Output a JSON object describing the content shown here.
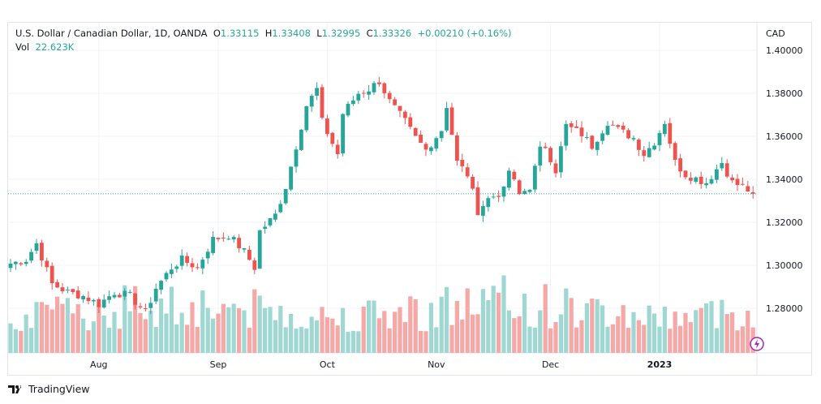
{
  "legend": {
    "symbol": "U.S. Dollar / Canadian Dollar, 1D, OANDA",
    "o_label": "O",
    "o": "1.33115",
    "h_label": "H",
    "h": "1.33408",
    "l_label": "L",
    "l": "1.32995",
    "c_label": "C",
    "c": "1.33326",
    "change": "+0.00210 (+0.16%)",
    "vol_label": "Vol",
    "vol": "22.623K"
  },
  "currency": "CAD",
  "brand": "TradingView",
  "colors": {
    "up": "#26a69a",
    "down": "#ef5350",
    "vol_up": "#9fd8d2",
    "vol_down": "#f5a8a6",
    "grid": "#f0f3fa",
    "last_line": "#26a69a"
  },
  "chart_data": {
    "type": "candlestick",
    "title": "U.S. Dollar / Canadian Dollar, 1D, OANDA",
    "ylim": [
      1.263,
      1.403
    ],
    "y_ticks": [
      "1.40000",
      "1.38000",
      "1.36000",
      "1.34000",
      "1.32000",
      "1.30000",
      "1.28000"
    ],
    "y_tick_values": [
      1.4,
      1.38,
      1.36,
      1.34,
      1.32,
      1.3,
      1.28
    ],
    "x_ticks": [
      {
        "label": "Aug",
        "index": 17
      },
      {
        "label": "Sep",
        "index": 40
      },
      {
        "label": "Oct",
        "index": 61
      },
      {
        "label": "Nov",
        "index": 82
      },
      {
        "label": "Dec",
        "index": 104
      },
      {
        "label": "2023",
        "index": 125
      }
    ],
    "candle_count": 144,
    "close_keypoints": [
      [
        0,
        1.3008
      ],
      [
        3,
        1.3026
      ],
      [
        5,
        1.3102
      ],
      [
        8,
        1.2913
      ],
      [
        11,
        1.2875
      ],
      [
        14,
        1.2857
      ],
      [
        17,
        1.2819
      ],
      [
        20,
        1.2875
      ],
      [
        23,
        1.2857
      ],
      [
        26,
        1.2781
      ],
      [
        28,
        1.2894
      ],
      [
        31,
        1.2989
      ],
      [
        33,
        1.3026
      ],
      [
        36,
        1.2989
      ],
      [
        39,
        1.3121
      ],
      [
        42,
        1.314
      ],
      [
        45,
        1.3064
      ],
      [
        47,
        1.2989
      ],
      [
        48,
        1.3158
      ],
      [
        51,
        1.3234
      ],
      [
        53,
        1.3366
      ],
      [
        55,
        1.3555
      ],
      [
        57,
        1.3743
      ],
      [
        59,
        1.3819
      ],
      [
        60,
        1.3668
      ],
      [
        63,
        1.3517
      ],
      [
        64,
        1.3706
      ],
      [
        67,
        1.38
      ],
      [
        69,
        1.3819
      ],
      [
        71,
        1.3857
      ],
      [
        73,
        1.3762
      ],
      [
        76,
        1.3668
      ],
      [
        78,
        1.3592
      ],
      [
        80,
        1.3536
      ],
      [
        83,
        1.363
      ],
      [
        84,
        1.3743
      ],
      [
        86,
        1.3479
      ],
      [
        88,
        1.3423
      ],
      [
        90,
        1.3253
      ],
      [
        92,
        1.3309
      ],
      [
        95,
        1.3347
      ],
      [
        96,
        1.3442
      ],
      [
        98,
        1.3328
      ],
      [
        100,
        1.3366
      ],
      [
        102,
        1.3536
      ],
      [
        103,
        1.3555
      ],
      [
        105,
        1.3442
      ],
      [
        107,
        1.3649
      ],
      [
        110,
        1.3611
      ],
      [
        112,
        1.3555
      ],
      [
        115,
        1.3668
      ],
      [
        117,
        1.363
      ],
      [
        120,
        1.3592
      ],
      [
        122,
        1.3517
      ],
      [
        124,
        1.3574
      ],
      [
        126,
        1.3668
      ],
      [
        128,
        1.3479
      ],
      [
        130,
        1.3423
      ],
      [
        134,
        1.3385
      ],
      [
        137,
        1.3479
      ],
      [
        139,
        1.3385
      ],
      [
        141,
        1.3366
      ],
      [
        143,
        1.3333
      ]
    ],
    "last_price": 1.33326,
    "volume_range_k": [
      10,
      37
    ]
  }
}
